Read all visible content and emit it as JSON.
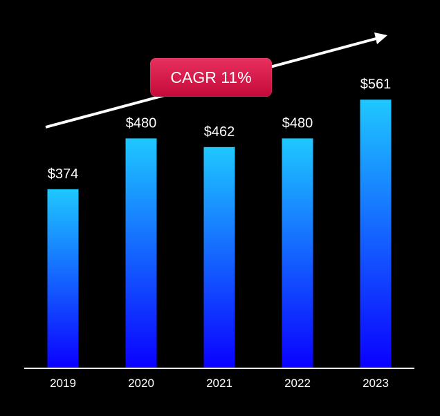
{
  "chart_data": {
    "type": "bar",
    "categories": [
      "2019",
      "2020",
      "2021",
      "2022",
      "2023"
    ],
    "values": [
      374,
      480,
      462,
      480,
      561
    ],
    "value_labels": [
      "$374",
      "$480",
      "$462",
      "$480",
      "$561"
    ],
    "title": "",
    "xlabel": "",
    "ylabel": "",
    "ylim": [
      0,
      600
    ],
    "grid": false,
    "legend": "none",
    "annotation": {
      "text": "CAGR 11%",
      "shape": "upward trend arrow"
    },
    "colors": {
      "background": "#000000",
      "bar_top": "#1fc8ff",
      "bar_bottom": "#0a00ff",
      "axis": "#ffffff",
      "text": "#ffffff",
      "badge": "#d81b4c"
    }
  }
}
